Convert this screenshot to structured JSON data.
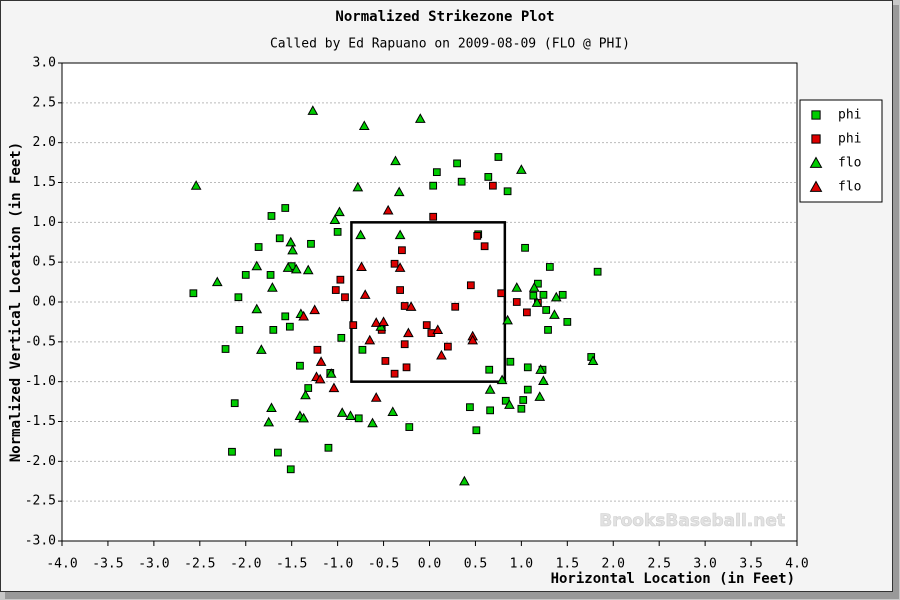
{
  "chart_data": {
    "type": "scatter",
    "title": "Normalized Strikezone Plot",
    "subtitle": "Called by Ed Rapuano on 2009-08-09 (FLO @ PHI)",
    "x_label": "Horizontal Location (in Feet)",
    "y_label": "Normalized Vertical Location (in Feet)",
    "watermark": "BrooksBaseball.net",
    "legend": "right",
    "grid": true,
    "xlim": [
      -4,
      4
    ],
    "ylim": [
      -3,
      3
    ],
    "xticks": [
      {
        "value": -4,
        "label": "-4.0"
      },
      {
        "value": -3.5,
        "label": "-3.5"
      },
      {
        "value": -3,
        "label": "-3.0"
      },
      {
        "value": -2.5,
        "label": "-2.5"
      },
      {
        "value": -2,
        "label": "-2.0"
      },
      {
        "value": -1.5,
        "label": "-1.5"
      },
      {
        "value": -1,
        "label": "-1.0"
      },
      {
        "value": -0.5,
        "label": "-0.5"
      },
      {
        "value": 0,
        "label": "0.0"
      },
      {
        "value": 0.5,
        "label": "0.5"
      },
      {
        "value": 1,
        "label": "1.0"
      },
      {
        "value": 1.5,
        "label": "1.5"
      },
      {
        "value": 2,
        "label": "2.0"
      },
      {
        "value": 2.5,
        "label": "2.5"
      },
      {
        "value": 3,
        "label": "3.0"
      },
      {
        "value": 3.5,
        "label": "3.5"
      },
      {
        "value": 4,
        "label": "4.0"
      }
    ],
    "yticks": [
      {
        "value": 3,
        "label": "3.0"
      },
      {
        "value": 2.5,
        "label": "2.5"
      },
      {
        "value": 2,
        "label": "2.0"
      },
      {
        "value": 1.5,
        "label": "1.5"
      },
      {
        "value": 1,
        "label": "1.0"
      },
      {
        "value": 0.5,
        "label": "0.5"
      },
      {
        "value": 0,
        "label": "0.0"
      },
      {
        "value": -0.5,
        "label": "-0.5"
      },
      {
        "value": -1,
        "label": "-1.0"
      },
      {
        "value": -1.5,
        "label": "-1.5"
      },
      {
        "value": -2,
        "label": "-2.0"
      },
      {
        "value": -2.5,
        "label": "-2.5"
      },
      {
        "value": -3,
        "label": "-3.0"
      }
    ],
    "strike_zone": {
      "x": [
        -0.85,
        0.82
      ],
      "y": [
        -1,
        1
      ]
    },
    "series": [
      {
        "name": "phi",
        "marker": "square",
        "color": "#00cc00",
        "x": [
          -2.57,
          -1.86,
          -2.0,
          -2.08,
          -2.07,
          -2.22,
          -2.12,
          -2.15,
          -1.72,
          -1.57,
          -1.63,
          -1.5,
          -1.73,
          -1.29,
          -1.57,
          -1.52,
          -1.7,
          -1.41,
          -1.65,
          -1.51,
          -1.1,
          -1.32,
          -1.0,
          -0.96,
          -1.08,
          -0.77,
          -0.73,
          -0.22,
          0.08,
          0.3,
          0.35,
          0.04,
          0.75,
          0.85,
          0.64,
          0.53,
          1.04,
          1.31,
          1.45,
          1.18,
          1.24,
          1.13,
          1.27,
          1.29,
          1.5,
          0.88,
          0.65,
          1.07,
          1.23,
          1.07,
          1.02,
          0.83,
          0.66,
          1.0,
          0.44,
          0.51,
          1.76,
          1.83
        ],
        "y": [
          0.11,
          0.69,
          0.34,
          0.06,
          -0.35,
          -0.59,
          -1.27,
          -1.88,
          1.08,
          1.18,
          0.8,
          0.45,
          0.34,
          0.73,
          -0.18,
          -0.31,
          -0.35,
          -0.8,
          -1.89,
          -2.1,
          -1.83,
          -1.08,
          0.88,
          -0.45,
          -0.89,
          -1.46,
          -0.6,
          -1.57,
          1.63,
          1.74,
          1.51,
          1.46,
          1.82,
          1.39,
          1.57,
          0.85,
          0.68,
          0.44,
          0.09,
          0.23,
          0.09,
          0.08,
          -0.1,
          -0.35,
          -0.25,
          -0.75,
          -0.85,
          -0.82,
          -0.85,
          -1.1,
          -1.23,
          -1.24,
          -1.36,
          -1.34,
          -1.32,
          -1.61,
          -0.69,
          0.38
        ]
      },
      {
        "name": "phi",
        "marker": "square",
        "color": "#dd0000",
        "x": [
          0.04,
          0.69,
          0.52,
          0.6,
          0.78,
          0.45,
          0.28,
          1.06,
          0.95,
          1.18,
          -0.3,
          -0.38,
          -0.32,
          -0.97,
          -1.02,
          -0.92,
          -0.83,
          -0.27,
          -0.48,
          -0.38,
          -0.25,
          -0.27,
          -0.03,
          0.2,
          0.02,
          -1.22,
          -0.52
        ],
        "y": [
          1.07,
          1.46,
          0.83,
          0.7,
          0.11,
          0.21,
          -0.06,
          -0.13,
          0.0,
          -0.01,
          0.65,
          0.48,
          0.15,
          0.28,
          0.15,
          0.06,
          -0.29,
          -0.05,
          -0.74,
          -0.9,
          -0.82,
          -0.53,
          -0.29,
          -0.56,
          -0.39,
          -0.6,
          -0.35
        ]
      },
      {
        "name": "flo",
        "marker": "triangle",
        "color": "#00cc00",
        "x": [
          -2.54,
          -1.27,
          -0.71,
          -0.1,
          -0.37,
          -0.78,
          -0.33,
          1.0,
          -0.98,
          -1.03,
          -0.75,
          -0.32,
          -1.51,
          -1.49,
          -1.88,
          -1.54,
          -1.45,
          -1.32,
          -2.31,
          -1.71,
          -1.88,
          -1.83,
          -1.4,
          0.95,
          1.14,
          1.38,
          1.17,
          1.36,
          0.85,
          1.21,
          1.24,
          0.79,
          0.66,
          0.87,
          1.2,
          1.78,
          -1.72,
          -1.75,
          -1.41,
          -1.37,
          -1.35,
          -1.07,
          -0.95,
          -0.86,
          -0.62,
          -0.4,
          0.38,
          -0.53
        ],
        "y": [
          1.46,
          2.4,
          2.21,
          2.3,
          1.77,
          1.44,
          1.38,
          1.66,
          1.13,
          1.03,
          0.84,
          0.84,
          0.75,
          0.65,
          0.45,
          0.43,
          0.41,
          0.4,
          0.25,
          0.18,
          -0.09,
          -0.6,
          -0.15,
          0.18,
          0.18,
          0.06,
          -0.01,
          -0.16,
          -0.23,
          -0.85,
          -0.99,
          -0.98,
          -1.1,
          -1.29,
          -1.19,
          -0.74,
          -1.33,
          -1.51,
          -1.43,
          -1.46,
          -1.17,
          -0.9,
          -1.39,
          -1.43,
          -1.52,
          -1.38,
          -2.25,
          -0.31
        ]
      },
      {
        "name": "flo",
        "marker": "triangle",
        "color": "#dd0000",
        "x": [
          -0.45,
          -0.74,
          -0.32,
          -0.7,
          -0.2,
          -0.58,
          -0.5,
          -0.65,
          -0.23,
          0.09,
          0.13,
          0.47,
          0.47,
          -1.25,
          -1.37,
          -1.18,
          -1.23,
          -1.19,
          -1.04,
          -0.58
        ],
        "y": [
          1.15,
          0.44,
          0.43,
          0.09,
          -0.06,
          -0.26,
          -0.25,
          -0.48,
          -0.39,
          -0.35,
          -0.67,
          -0.43,
          -0.48,
          -0.1,
          -0.18,
          -0.75,
          -0.94,
          -0.97,
          -1.08,
          -1.2
        ]
      }
    ]
  }
}
